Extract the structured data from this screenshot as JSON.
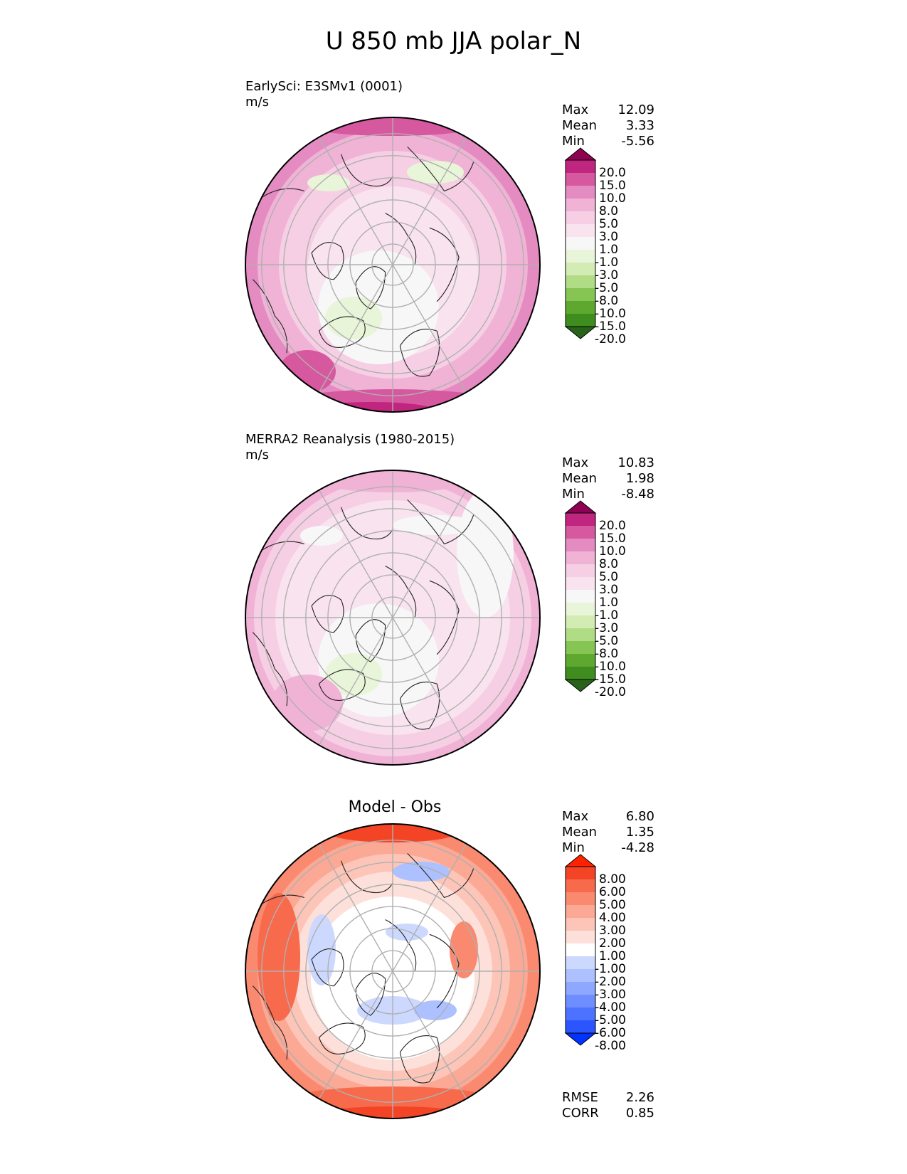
{
  "title": "U 850 mb JJA polar_N",
  "colors": {
    "pink_scale": [
      "#276419",
      "#3f8c1f",
      "#5ea830",
      "#86c454",
      "#b0dc85",
      "#d2ecb3",
      "#e9f5d9",
      "#f7f7f7",
      "#f8e3ef",
      "#f6cfe4",
      "#f0b3d6",
      "#e48bc1",
      "#d6589f",
      "#c0257f",
      "#8e0152"
    ],
    "diff_scale": [
      "#0033ff",
      "#2b55ff",
      "#4d72ff",
      "#6e8eff",
      "#8fa8ff",
      "#adc0ff",
      "#cdd8ff",
      "#ffffff",
      "#fde0da",
      "#fcc5b8",
      "#fba894",
      "#f98a70",
      "#f76a4c",
      "#f34526",
      "#ff2200"
    ],
    "grid": "#b0b0b0"
  },
  "chart_data": [
    {
      "type": "heatmap",
      "projection": "north-polar-stereographic",
      "title": "EarlySci: E3SMv1 (0001)",
      "units": "m/s",
      "stats": {
        "max": "12.09",
        "mean": "3.33",
        "min": "-5.56"
      },
      "colorbar_levels": [
        "20.0",
        "15.0",
        "10.0",
        "8.0",
        "5.0",
        "3.0",
        "1.0",
        "-1.0",
        "-3.0",
        "-5.0",
        "-8.0",
        "-10.0",
        "-15.0",
        "-20.0"
      ]
    },
    {
      "type": "heatmap",
      "projection": "north-polar-stereographic",
      "title": "MERRA2 Reanalysis (1980-2015)",
      "units": "m/s",
      "stats": {
        "max": "10.83",
        "mean": "1.98",
        "min": "-8.48"
      },
      "colorbar_levels": [
        "20.0",
        "15.0",
        "10.0",
        "8.0",
        "5.0",
        "3.0",
        "1.0",
        "-1.0",
        "-3.0",
        "-5.0",
        "-8.0",
        "-10.0",
        "-15.0",
        "-20.0"
      ]
    },
    {
      "type": "heatmap",
      "projection": "north-polar-stereographic",
      "title": "Model - Obs",
      "stats": {
        "max": "6.80",
        "mean": "1.35",
        "min": "-4.28"
      },
      "colorbar_levels": [
        "8.00",
        "6.00",
        "5.00",
        "4.00",
        "3.00",
        "2.00",
        "1.00",
        "-1.00",
        "-2.00",
        "-3.00",
        "-4.00",
        "-5.00",
        "-6.00",
        "-8.00"
      ],
      "metrics": {
        "rmse": "2.26",
        "corr": "0.85"
      }
    }
  ],
  "labels": {
    "max": "Max",
    "mean": "Mean",
    "min": "Min",
    "rmse": "RMSE",
    "corr": "CORR"
  }
}
